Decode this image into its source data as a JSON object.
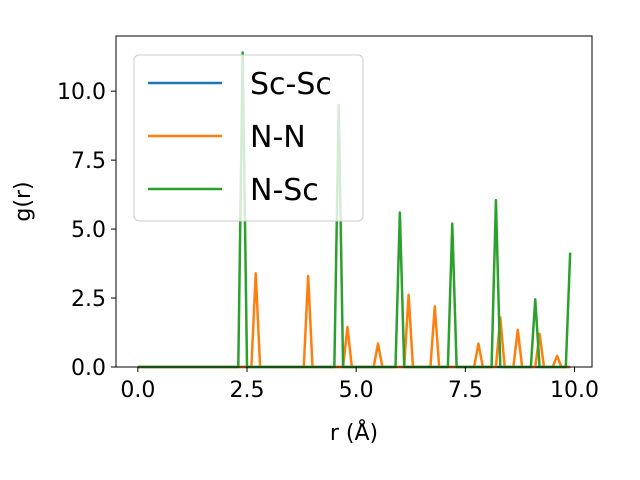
{
  "chart_data": {
    "type": "line",
    "title": "",
    "xlabel": "r (Å)",
    "ylabel": "g(r)",
    "xlim": [
      -0.5,
      10.4
    ],
    "ylim": [
      0,
      12.0
    ],
    "xticks": [
      0.0,
      2.5,
      5.0,
      7.5,
      10.0
    ],
    "xtick_labels": [
      "0.0",
      "2.5",
      "5.0",
      "7.5",
      "10.0"
    ],
    "yticks": [
      0.0,
      2.5,
      5.0,
      7.5,
      10.0
    ],
    "ytick_labels": [
      "0.0",
      "2.5",
      "5.0",
      "7.5",
      "10.0"
    ],
    "grid": false,
    "legend": "upper-left",
    "series": [
      {
        "name": "Sc-Sc",
        "color": "#1f77b4",
        "x": [
          0.0,
          9.9
        ],
        "y": [
          0.0,
          0.0
        ]
      },
      {
        "name": "N-N",
        "color": "#ff7f0e",
        "x": [
          0.0,
          2.6,
          2.7,
          2.8,
          3.8,
          3.9,
          4.0,
          4.7,
          4.8,
          4.9,
          5.4,
          5.5,
          5.6,
          6.1,
          6.2,
          6.3,
          6.7,
          6.8,
          6.9,
          7.7,
          7.8,
          7.9,
          8.2,
          8.3,
          8.4,
          8.6,
          8.7,
          8.8,
          9.1,
          9.2,
          9.3,
          9.5,
          9.6,
          9.7,
          9.9
        ],
        "y": [
          0.0,
          0.0,
          3.4,
          0.0,
          0.0,
          3.3,
          0.0,
          0.0,
          1.45,
          0.0,
          0.0,
          0.85,
          0.0,
          0.0,
          2.62,
          0.0,
          0.0,
          2.2,
          0.0,
          0.0,
          0.85,
          0.0,
          0.0,
          1.8,
          0.0,
          0.0,
          1.35,
          0.0,
          0.0,
          1.2,
          0.0,
          0.0,
          0.4,
          0.0,
          0.0
        ]
      },
      {
        "name": "N-Sc",
        "color": "#2ca02c",
        "x": [
          0.0,
          2.3,
          2.4,
          2.5,
          4.5,
          4.6,
          4.7,
          5.9,
          6.0,
          6.1,
          7.1,
          7.2,
          7.3,
          8.1,
          8.2,
          8.3,
          9.0,
          9.1,
          9.2,
          9.8,
          9.9
        ],
        "y": [
          0.0,
          0.0,
          11.4,
          0.0,
          0.0,
          9.5,
          0.0,
          0.0,
          5.6,
          0.0,
          0.0,
          5.2,
          0.0,
          0.0,
          6.05,
          0.0,
          0.0,
          2.45,
          0.0,
          0.0,
          4.15
        ]
      }
    ]
  }
}
